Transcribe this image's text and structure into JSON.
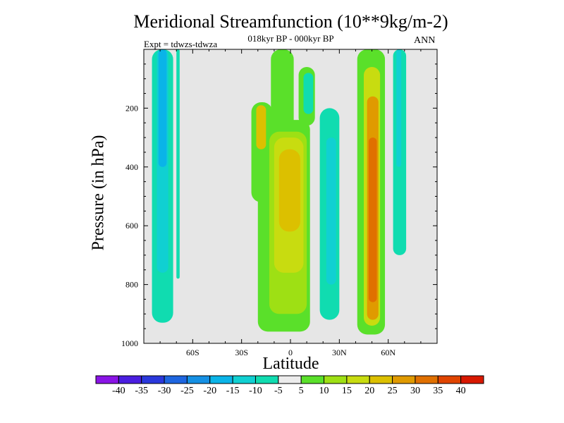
{
  "chart_data": {
    "type": "heatmap",
    "title": "Meridional Streamfunction (10**9kg/m-2)",
    "subtitle": "018kyr BP - 000kyr BP",
    "left_label": "Expt = tdwzs-tdwza",
    "right_label": "ANN",
    "xlabel": "Latitude",
    "ylabel": "Pressure (in hPa)",
    "xlim": [
      -90,
      90
    ],
    "ylim": [
      1000,
      0
    ],
    "x_ticks": [
      {
        "value": -60,
        "label": "60S"
      },
      {
        "value": -30,
        "label": "30S"
      },
      {
        "value": 0,
        "label": "0"
      },
      {
        "value": 30,
        "label": "30N"
      },
      {
        "value": 60,
        "label": "60N"
      }
    ],
    "y_ticks": [
      {
        "value": 200,
        "label": "200"
      },
      {
        "value": 400,
        "label": "400"
      },
      {
        "value": 600,
        "label": "600"
      },
      {
        "value": 800,
        "label": "800"
      },
      {
        "value": 1000,
        "label": "1000"
      }
    ],
    "colorbar": {
      "levels": [
        "-40",
        "-35",
        "-30",
        "-25",
        "-20",
        "-15",
        "-10",
        "-5",
        "5",
        "10",
        "15",
        "20",
        "25",
        "30",
        "35",
        "40"
      ],
      "colors": [
        "#8a14e6",
        "#4a1ee0",
        "#2a38dc",
        "#1e66e0",
        "#1590e4",
        "#0ab4e8",
        "#10d0d2",
        "#10dcb0",
        "#ececec",
        "#5ae02a",
        "#9ee014",
        "#c8dc10",
        "#dcc000",
        "#e09a00",
        "#e07000",
        "#e04400",
        "#d81800"
      ]
    },
    "bands": [
      {
        "lat_min": -85,
        "lat_max": -72,
        "p_top": 0,
        "p_bottom": 930,
        "level": "-5",
        "color": "#10dcb0"
      },
      {
        "lat_min": -82,
        "lat_max": -75,
        "p_top": 0,
        "p_bottom": 760,
        "level": "-10",
        "color": "#10d0d2"
      },
      {
        "lat_min": -81,
        "lat_max": -76,
        "p_top": 0,
        "p_bottom": 400,
        "level": "-15",
        "color": "#0ab4e8"
      },
      {
        "lat_min": -70,
        "lat_max": -68,
        "p_top": 0,
        "p_bottom": 780,
        "level": "-5",
        "color": "#10dcb0"
      },
      {
        "lat_min": -24,
        "lat_max": -11,
        "p_top": 180,
        "p_bottom": 520,
        "level": "5",
        "color": "#5ae02a"
      },
      {
        "lat_min": -12,
        "lat_max": 2,
        "p_top": 0,
        "p_bottom": 950,
        "level": "5",
        "color": "#5ae02a"
      },
      {
        "lat_min": -20,
        "lat_max": 12,
        "p_top": 240,
        "p_bottom": 960,
        "level": "5",
        "color": "#5ae02a"
      },
      {
        "lat_min": -13,
        "lat_max": 10,
        "p_top": 280,
        "p_bottom": 900,
        "level": "10",
        "color": "#9ee014"
      },
      {
        "lat_min": -10,
        "lat_max": 8,
        "p_top": 300,
        "p_bottom": 760,
        "level": "15",
        "color": "#c8dc10"
      },
      {
        "lat_min": -7,
        "lat_max": 6,
        "p_top": 340,
        "p_bottom": 620,
        "level": "20",
        "color": "#dcc000"
      },
      {
        "lat_min": -21,
        "lat_max": -15,
        "p_top": 190,
        "p_bottom": 340,
        "level": "20",
        "color": "#dcc000"
      },
      {
        "lat_min": 5,
        "lat_max": 15,
        "p_top": 60,
        "p_bottom": 260,
        "level": "5",
        "color": "#5ae02a"
      },
      {
        "lat_min": 8,
        "lat_max": 14,
        "p_top": 80,
        "p_bottom": 220,
        "level": "-5",
        "color": "#10dcb0"
      },
      {
        "lat_min": 18,
        "lat_max": 30,
        "p_top": 200,
        "p_bottom": 920,
        "level": "-5",
        "color": "#10dcb0"
      },
      {
        "lat_min": 22,
        "lat_max": 28,
        "p_top": 300,
        "p_bottom": 800,
        "level": "-10",
        "color": "#10d0d2"
      },
      {
        "lat_min": 41,
        "lat_max": 58,
        "p_top": 0,
        "p_bottom": 970,
        "level": "5",
        "color": "#5ae02a"
      },
      {
        "lat_min": 45,
        "lat_max": 55,
        "p_top": 60,
        "p_bottom": 940,
        "level": "15",
        "color": "#c8dc10"
      },
      {
        "lat_min": 47,
        "lat_max": 54,
        "p_top": 160,
        "p_bottom": 920,
        "level": "25",
        "color": "#e09a00"
      },
      {
        "lat_min": 48,
        "lat_max": 53,
        "p_top": 300,
        "p_bottom": 860,
        "level": "30",
        "color": "#e07000"
      },
      {
        "lat_min": 63,
        "lat_max": 71,
        "p_top": 0,
        "p_bottom": 700,
        "level": "-5",
        "color": "#10dcb0"
      },
      {
        "lat_min": 65,
        "lat_max": 68,
        "p_top": 0,
        "p_bottom": 400,
        "level": "-10",
        "color": "#10d0d2"
      }
    ]
  }
}
